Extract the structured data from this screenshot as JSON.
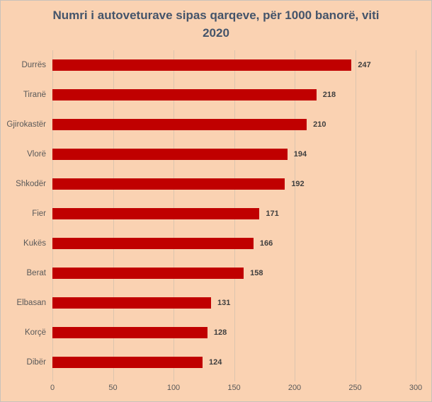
{
  "title_display": "Numri i autoveturave sipas qarqeve, për 1000 banorë, viti\n2020",
  "chart_data": {
    "type": "bar",
    "orientation": "horizontal",
    "title": "Numri i autoveturave sipas qarqeve, për 1000 banorë, viti 2020",
    "categories": [
      "Durrës",
      "Tiranë",
      "Gjirokastër",
      "Vlorë",
      "Shkodër",
      "Fier",
      "Kukës",
      "Berat",
      "Elbasan",
      "Korçë",
      "Dibër"
    ],
    "values": [
      247,
      218,
      210,
      194,
      192,
      171,
      166,
      158,
      131,
      128,
      124
    ],
    "xlabel": "",
    "ylabel": "",
    "xlim": [
      0,
      300
    ],
    "xticks": [
      0,
      50,
      100,
      150,
      200,
      250,
      300
    ],
    "grid": true,
    "legend": false,
    "data_labels": true
  },
  "colors": {
    "background": "#FAD2B2",
    "bar": "#C00000",
    "title": "#44546A",
    "category_label": "#595959",
    "value_label": "#3F3F3F",
    "axis_label": "#595959",
    "gridline": "#DCC5AE"
  }
}
